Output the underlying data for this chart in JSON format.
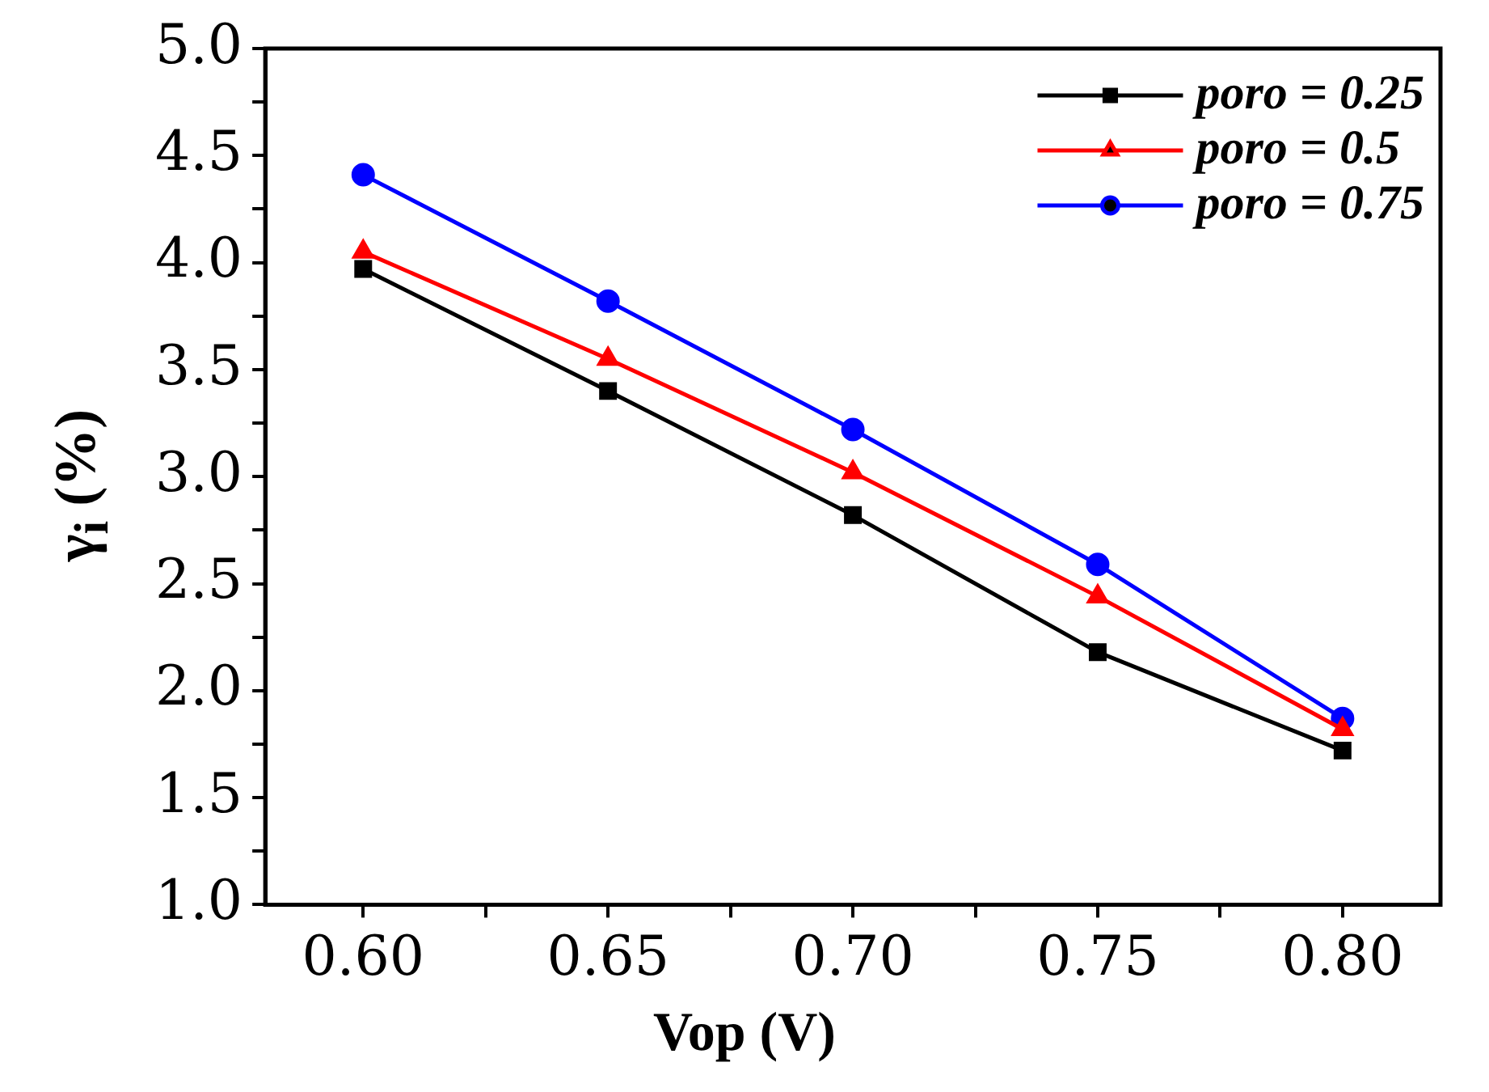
{
  "chart_data": {
    "type": "line",
    "xlabel": "Vop (V)",
    "ylabel": "γ$_{i}$ (%)",
    "x": [
      0.6,
      0.65,
      0.7,
      0.75,
      0.8
    ],
    "series": [
      {
        "name": "poro = 0.25",
        "color": "#000000",
        "marker": "square",
        "values": [
          3.97,
          3.4,
          2.82,
          2.18,
          1.72
        ]
      },
      {
        "name": "poro = 0.5",
        "color": "#ff0000",
        "marker": "triangle",
        "values": [
          4.05,
          3.55,
          3.02,
          2.44,
          1.82
        ]
      },
      {
        "name": "poro = 0.75",
        "color": "#0000ff",
        "marker": "circle",
        "values": [
          4.41,
          3.82,
          3.22,
          2.59,
          1.87
        ]
      }
    ],
    "xlim": [
      0.58,
      0.82
    ],
    "xticks": [
      {
        "value": 0.6,
        "label": "0.60"
      },
      {
        "value": 0.625,
        "label": null
      },
      {
        "value": 0.65,
        "label": "0.65"
      },
      {
        "value": 0.675,
        "label": null
      },
      {
        "value": 0.7,
        "label": "0.70"
      },
      {
        "value": 0.725,
        "label": null
      },
      {
        "value": 0.75,
        "label": "0.75"
      },
      {
        "value": 0.775,
        "label": null
      },
      {
        "value": 0.8,
        "label": "0.80"
      }
    ],
    "ylim": [
      1,
      5
    ],
    "yticks": [
      {
        "value": 1,
        "label": "1.0"
      },
      {
        "value": 1.25,
        "label": null
      },
      {
        "value": 1.5,
        "label": "1.5"
      },
      {
        "value": 1.75,
        "label": null
      },
      {
        "value": 2,
        "label": "2.0"
      },
      {
        "value": 2.25,
        "label": null
      },
      {
        "value": 2.5,
        "label": "2.5"
      },
      {
        "value": 2.75,
        "label": null
      },
      {
        "value": 3,
        "label": "3.0"
      },
      {
        "value": 3.25,
        "label": null
      },
      {
        "value": 3.5,
        "label": "3.5"
      },
      {
        "value": 3.75,
        "label": null
      },
      {
        "value": 4,
        "label": "4.0"
      },
      {
        "value": 4.25,
        "label": null
      },
      {
        "value": 4.5,
        "label": "4.5"
      },
      {
        "value": 4.75,
        "label": null
      },
      {
        "value": 5,
        "label": "5.0"
      }
    ],
    "legend": "top right",
    "grid": false,
    "line_style": "solid"
  }
}
